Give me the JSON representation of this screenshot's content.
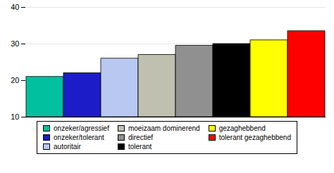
{
  "chart_data": {
    "type": "bar",
    "categories": [
      "onzeker/agressief",
      "onzeker/tolerant",
      "autoritair",
      "moeizaam dominerend",
      "directief",
      "tolerant",
      "gezaghebbend",
      "tolerant gezaghebbend"
    ],
    "values": [
      21,
      22,
      26,
      27,
      29.5,
      30,
      31,
      33.5
    ],
    "colors": [
      "#00c0a0",
      "#1c1cc8",
      "#b8c8f0",
      "#c0c0b0",
      "#909090",
      "#000000",
      "#ffff00",
      "#ff0000"
    ],
    "ylim": [
      10,
      40
    ],
    "yticks": [
      10,
      20,
      30,
      40
    ],
    "grid": true,
    "legend": "bottom",
    "tick_labels": "y"
  }
}
